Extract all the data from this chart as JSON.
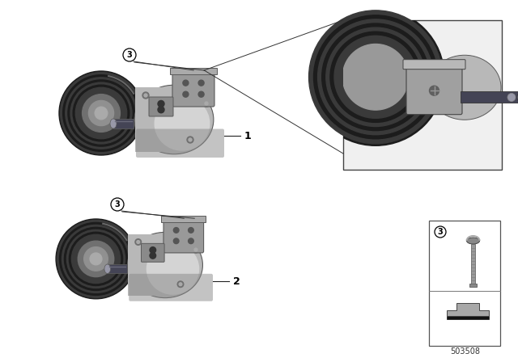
{
  "background_color": "#ffffff",
  "fig_width": 6.4,
  "fig_height": 4.48,
  "dpi": 100,
  "diagram_id": "503508",
  "label_font_size": 9,
  "id_font_size": 7,
  "circle_label_font_size": 7,
  "pulley_dark": "#1c1c1c",
  "pulley_groove": "#3a3a3a",
  "pulley_mid": "#606060",
  "body_main": "#b8b8b8",
  "body_light": "#d4d4d4",
  "body_shadow": "#888888",
  "body_dark": "#5a5a5a",
  "bracket_color": "#a0a0a0",
  "port_dark": "#444455",
  "port_mid": "#6a6a7a",
  "port_light": "#9898a8",
  "line_color": "#333333",
  "box_bg": "#f2f2f2",
  "box_border": "#444444",
  "label_dash_color": "#222222",
  "text_color": "#000000"
}
